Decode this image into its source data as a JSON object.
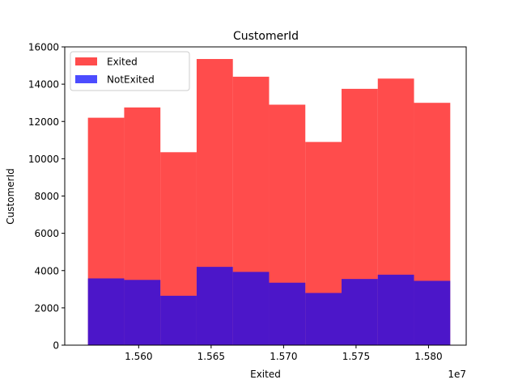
{
  "chart_data": {
    "type": "bar",
    "title": "CustomerId",
    "xlabel": "Exited",
    "ylabel": "CustomerId",
    "x_offset_label": "1e7",
    "bin_edges": [
      1.5565,
      1.559,
      1.5615,
      1.564,
      1.5665,
      1.569,
      1.5715,
      1.574,
      1.5765,
      1.579,
      1.5815
    ],
    "xlim": [
      1.5549,
      1.5826
    ],
    "xticks": [
      1.56,
      1.565,
      1.57,
      1.575,
      1.58
    ],
    "xtick_labels": [
      "1.560",
      "1.565",
      "1.570",
      "1.575",
      "1.580"
    ],
    "ylim": [
      0,
      16000
    ],
    "yticks": [
      0,
      2000,
      4000,
      6000,
      8000,
      10000,
      12000,
      14000,
      16000
    ],
    "ytick_labels": [
      "0",
      "2000",
      "4000",
      "6000",
      "8000",
      "10000",
      "12000",
      "14000",
      "16000"
    ],
    "series": [
      {
        "name": "Exited",
        "color": "#ff0000",
        "alpha": 0.7,
        "values": [
          12200,
          12750,
          10350,
          15350,
          14400,
          12900,
          10900,
          13750,
          14300,
          13000
        ]
      },
      {
        "name": "NotExited",
        "color": "#0000ff",
        "alpha": 0.7,
        "values": [
          3580,
          3500,
          2650,
          4200,
          3930,
          3350,
          2800,
          3550,
          3780,
          3450
        ]
      }
    ],
    "legend_position": "top-left",
    "grid": false
  }
}
